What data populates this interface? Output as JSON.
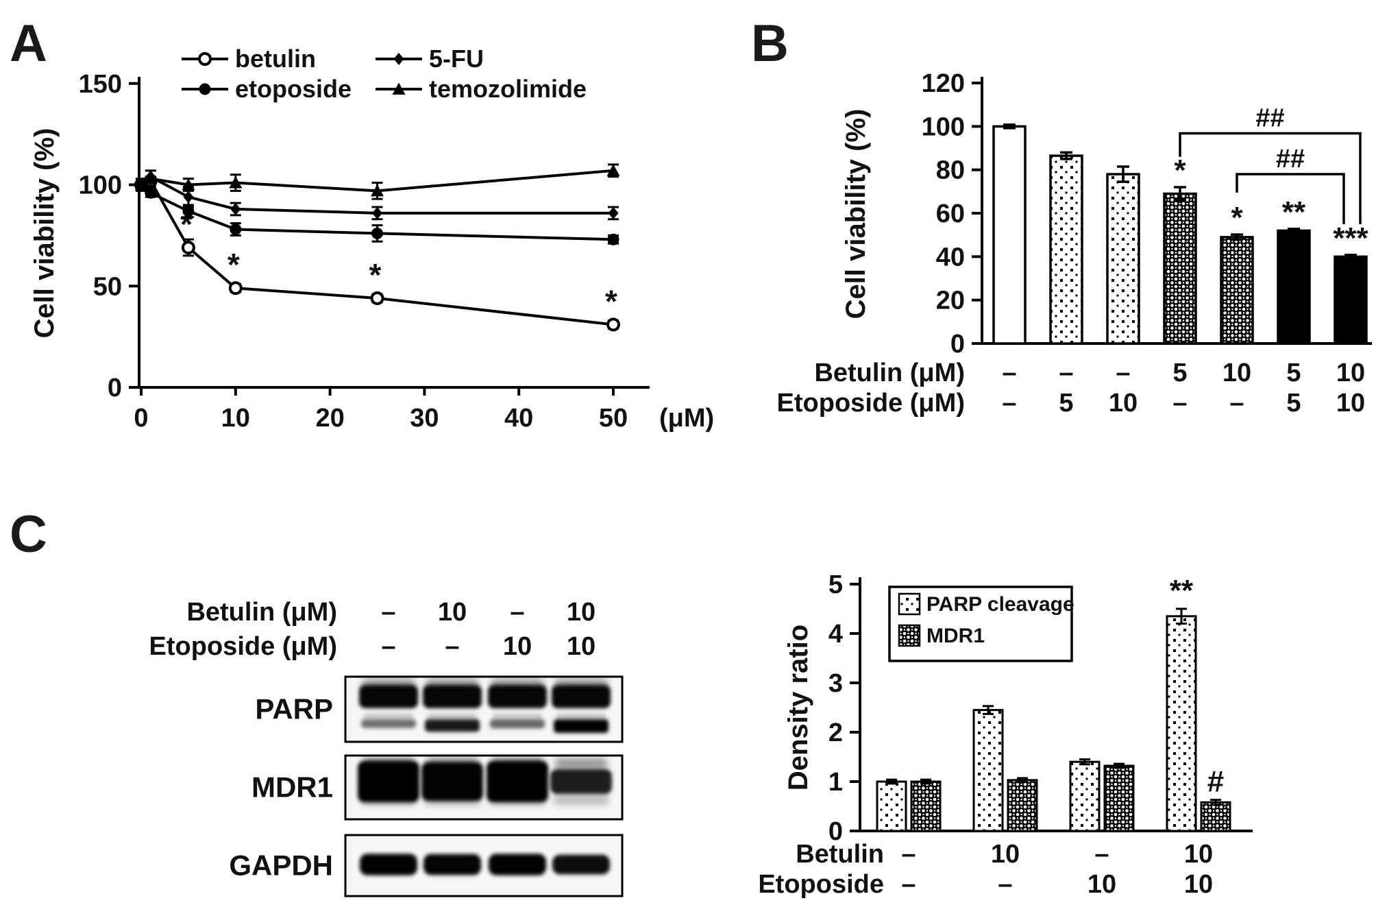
{
  "panels": {
    "a": {
      "letter": "A"
    },
    "b": {
      "letter": "B"
    },
    "c": {
      "letter": "C"
    }
  },
  "colors": {
    "ink": "#111111",
    "background": "#ffffff"
  },
  "chart_data": [
    {
      "id": "viability_vs_dose",
      "type": "line",
      "title": "",
      "xlabel": "(μM)",
      "ylabel": "Cell viability (%)",
      "x": [
        0,
        1,
        5,
        10,
        25,
        50
      ],
      "xticks": [
        0,
        10,
        20,
        30,
        40,
        50
      ],
      "yticks": [
        0,
        50,
        100,
        150
      ],
      "xlim": [
        0,
        54
      ],
      "ylim": [
        0,
        150
      ],
      "grid": false,
      "legend_position": "top",
      "legend_rows": [
        [
          "betulin",
          "5-FU"
        ],
        [
          "etoposide",
          "temozolimide"
        ]
      ],
      "series": [
        {
          "name": "betulin",
          "marker": "open-circle",
          "values": [
            100,
            102,
            69,
            49,
            44,
            31
          ],
          "errors": [
            1.5,
            2,
            4,
            2,
            2,
            2
          ],
          "asterisk_x": [
            5,
            10,
            25,
            50
          ]
        },
        {
          "name": "etoposide",
          "marker": "filled-circle",
          "values": [
            100,
            96,
            87,
            78,
            76,
            73
          ],
          "errors": [
            2,
            2,
            3,
            3,
            4,
            2
          ],
          "asterisk_x": []
        },
        {
          "name": "5-FU",
          "marker": "filled-diamond",
          "values": [
            100,
            104,
            94,
            88,
            86,
            86
          ],
          "errors": [
            2,
            3,
            5,
            3,
            3,
            3
          ],
          "asterisk_x": []
        },
        {
          "name": "temozolimide",
          "marker": "filled-triangle",
          "values": [
            100,
            103,
            100,
            101,
            97,
            107
          ],
          "errors": [
            3,
            4,
            3,
            4,
            4,
            3
          ],
          "asterisk_x": []
        }
      ]
    },
    {
      "id": "combination_viability",
      "type": "bar",
      "title": "",
      "ylabel": "Cell viability (%)",
      "yticks": [
        0,
        20,
        40,
        60,
        80,
        100,
        120
      ],
      "ylim": [
        0,
        120
      ],
      "grid": false,
      "values": [
        100,
        86.5,
        78,
        69,
        49,
        52,
        40
      ],
      "errors": [
        0.8,
        1.5,
        3.5,
        3,
        1.2,
        0.8,
        0.8
      ],
      "fills": [
        "white",
        "dots",
        "dots",
        "weave",
        "weave",
        "black",
        "black"
      ],
      "significance": [
        "",
        "",
        "",
        "*",
        "*",
        "**",
        "***"
      ],
      "brackets": [
        {
          "label": "##",
          "b1": 3,
          "b2": 6,
          "dx2": 14,
          "y": 96.8,
          "drop1": 86,
          "drop2": 55
        },
        {
          "label": "##",
          "b1": 4,
          "b2": 6,
          "dx2": -10,
          "y": 78,
          "drop1": 69.5,
          "drop2": 55
        }
      ],
      "row_labels": [
        "Betulin (μM)",
        "Etoposide (μM)"
      ],
      "rows": [
        [
          "–",
          "–",
          "–",
          "5",
          "10",
          "5",
          "10"
        ],
        [
          "–",
          "5",
          "10",
          "–",
          "–",
          "5",
          "10"
        ]
      ]
    },
    {
      "id": "density_ratio",
      "type": "grouped-bar",
      "title": "",
      "ylabel": "Density ratio",
      "yticks": [
        0,
        1,
        2,
        3,
        4,
        5
      ],
      "ylim": [
        0,
        5
      ],
      "grid": false,
      "legend_position": "top-left",
      "series": [
        {
          "name": "PARP cleavage",
          "fill": "dots",
          "values": [
            1.0,
            2.45,
            1.4,
            4.35
          ],
          "errors": [
            0.04,
            0.08,
            0.05,
            0.15
          ]
        },
        {
          "name": "MDR1",
          "fill": "weave",
          "values": [
            1.0,
            1.03,
            1.32,
            0.58
          ],
          "errors": [
            0.04,
            0.04,
            0.04,
            0.05
          ]
        }
      ],
      "annotations": [
        {
          "text": "**",
          "series": 0,
          "group": 3
        },
        {
          "text": "#",
          "series": 1,
          "group": 3
        }
      ],
      "row_labels": [
        "Betulin",
        "Etoposide"
      ],
      "rows": [
        [
          "–",
          "10",
          "–",
          "10"
        ],
        [
          "–",
          "–",
          "10",
          "10"
        ]
      ]
    }
  ],
  "blots": {
    "header_rows": [
      {
        "label": "Betulin (μM)",
        "values": [
          "–",
          "10",
          "–",
          "10"
        ]
      },
      {
        "label": "Etoposide (μM)",
        "values": [
          "–",
          "–",
          "10",
          "10"
        ]
      }
    ],
    "rows": [
      {
        "label": "PARP",
        "main_band": [
          1,
          1,
          1,
          1
        ],
        "cleaved_band": [
          0.35,
          0.85,
          0.4,
          1
        ]
      },
      {
        "label": "MDR1",
        "main_band": [
          1,
          0.97,
          1,
          0.78
        ]
      },
      {
        "label": "GAPDH",
        "main_band": [
          0.95,
          0.9,
          0.95,
          0.72
        ]
      }
    ]
  }
}
